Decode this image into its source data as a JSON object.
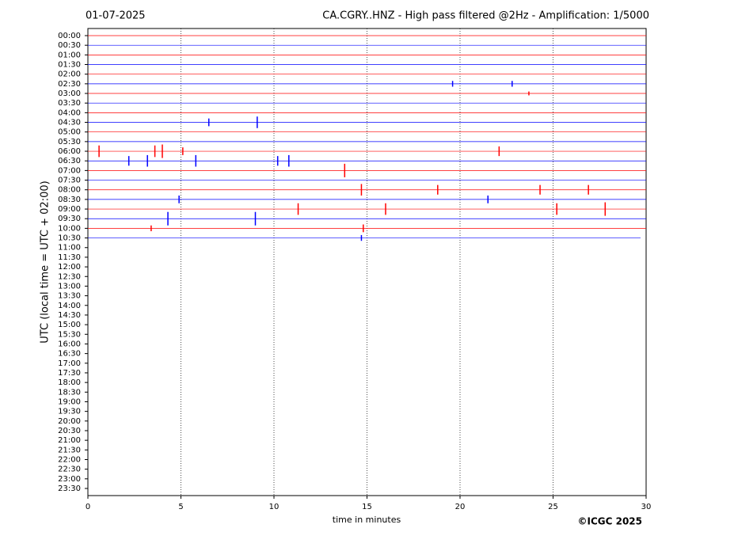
{
  "chart_data": {
    "type": "helicorder",
    "title_left": "01-07-2025",
    "title": "CA.CGRY..HNZ - High pass filtered @2Hz - Amplification: 1/5000",
    "xlabel": "time in minutes",
    "ylabel": "UTC (local time = UTC + 02:00)",
    "credit": "©ICGC 2025",
    "xlim": [
      0,
      30
    ],
    "xticks": [
      0,
      5,
      10,
      15,
      20,
      25,
      30
    ],
    "grid": true,
    "rows": [
      "00:00",
      "00:30",
      "01:00",
      "01:30",
      "02:00",
      "02:30",
      "03:00",
      "03:30",
      "04:00",
      "04:30",
      "05:00",
      "05:30",
      "06:00",
      "06:30",
      "07:00",
      "07:30",
      "08:00",
      "08:30",
      "09:00",
      "09:30",
      "10:00",
      "10:30",
      "11:00",
      "11:30",
      "12:00",
      "12:30",
      "13:00",
      "13:30",
      "14:00",
      "14:30",
      "15:00",
      "15:30",
      "16:00",
      "16:30",
      "17:00",
      "17:30",
      "18:00",
      "18:30",
      "19:00",
      "19:30",
      "20:00",
      "20:30",
      "21:00",
      "21:30",
      "22:00",
      "22:30",
      "23:00",
      "23:30"
    ],
    "traces": [
      {
        "color": "#ff0000",
        "end": 30
      },
      {
        "color": "#0000ff",
        "end": 30
      },
      {
        "color": "#ff0000",
        "end": 30
      },
      {
        "color": "#0000ff",
        "end": 30
      },
      {
        "color": "#ff0000",
        "end": 30
      },
      {
        "color": "#0000ff",
        "end": 30
      },
      {
        "color": "#ff0000",
        "end": 30
      },
      {
        "color": "#0000ff",
        "end": 30
      },
      {
        "color": "#ff0000",
        "end": 30
      },
      {
        "color": "#0000ff",
        "end": 30
      },
      {
        "color": "#ff0000",
        "end": 30
      },
      {
        "color": "#0000ff",
        "end": 30
      },
      {
        "color": "#ff0000",
        "end": 30
      },
      {
        "color": "#0000ff",
        "end": 30
      },
      {
        "color": "#ff0000",
        "end": 30
      },
      {
        "color": "#0000ff",
        "end": 30
      },
      {
        "color": "#ff0000",
        "end": 30
      },
      {
        "color": "#0000ff",
        "end": 30
      },
      {
        "color": "#ff0000",
        "end": 30
      },
      {
        "color": "#0000ff",
        "end": 30
      },
      {
        "color": "#ff0000",
        "end": 30
      },
      {
        "color": "#0000ff",
        "end": 29.7
      }
    ],
    "events": [
      {
        "row": 5,
        "x": 19.6,
        "amplitude": 0.3
      },
      {
        "row": 5,
        "x": 22.8,
        "amplitude": 0.3
      },
      {
        "row": 6,
        "x": 23.7,
        "amplitude": 0.2
      },
      {
        "row": 9,
        "x": 6.5,
        "amplitude": 0.4
      },
      {
        "row": 9,
        "x": 9.1,
        "amplitude": 0.6
      },
      {
        "row": 12,
        "x": 0.6,
        "amplitude": 0.6
      },
      {
        "row": 12,
        "x": 3.6,
        "amplitude": 0.6
      },
      {
        "row": 12,
        "x": 4.0,
        "amplitude": 0.7
      },
      {
        "row": 12,
        "x": 5.1,
        "amplitude": 0.4
      },
      {
        "row": 12,
        "x": 22.1,
        "amplitude": 0.5
      },
      {
        "row": 13,
        "x": 2.2,
        "amplitude": 0.5
      },
      {
        "row": 13,
        "x": 3.2,
        "amplitude": 0.6
      },
      {
        "row": 13,
        "x": 5.8,
        "amplitude": 0.6
      },
      {
        "row": 13,
        "x": 10.2,
        "amplitude": 0.5
      },
      {
        "row": 13,
        "x": 10.8,
        "amplitude": 0.6
      },
      {
        "row": 14,
        "x": 13.8,
        "amplitude": 0.7
      },
      {
        "row": 16,
        "x": 14.7,
        "amplitude": 0.6
      },
      {
        "row": 16,
        "x": 18.8,
        "amplitude": 0.5
      },
      {
        "row": 16,
        "x": 24.3,
        "amplitude": 0.5
      },
      {
        "row": 16,
        "x": 26.9,
        "amplitude": 0.5
      },
      {
        "row": 17,
        "x": 4.9,
        "amplitude": 0.4
      },
      {
        "row": 17,
        "x": 21.5,
        "amplitude": 0.4
      },
      {
        "row": 18,
        "x": 11.3,
        "amplitude": 0.6
      },
      {
        "row": 18,
        "x": 16.0,
        "amplitude": 0.6
      },
      {
        "row": 18,
        "x": 25.2,
        "amplitude": 0.6
      },
      {
        "row": 18,
        "x": 27.8,
        "amplitude": 0.7
      },
      {
        "row": 19,
        "x": 4.3,
        "amplitude": 0.7
      },
      {
        "row": 19,
        "x": 9.0,
        "amplitude": 0.7
      },
      {
        "row": 20,
        "x": 3.4,
        "amplitude": 0.3
      },
      {
        "row": 20,
        "x": 14.8,
        "amplitude": 0.4
      },
      {
        "row": 21,
        "x": 14.7,
        "amplitude": 0.3
      }
    ]
  }
}
